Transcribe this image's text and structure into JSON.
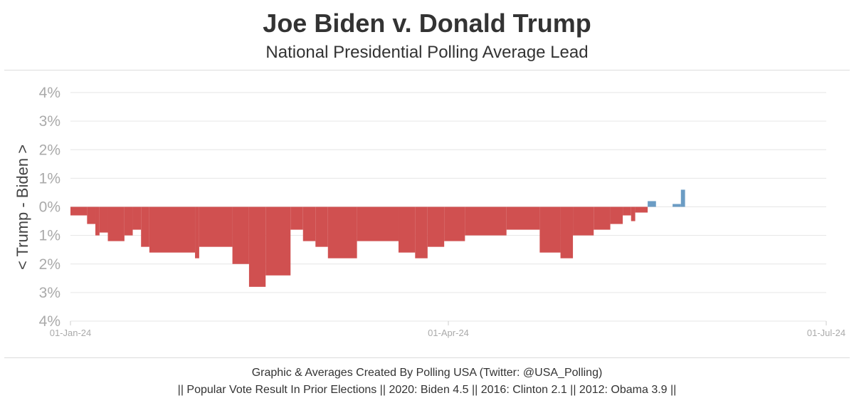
{
  "title": "Joe Biden v. Donald Trump",
  "subtitle": "National Presidential Polling Average Lead",
  "footer": {
    "line1": "Graphic & Averages Created By Polling USA (Twitter: @USA_Polling)",
    "line2": "|| Popular Vote Result In Prior Elections || 2020: Biden 4.5 || 2016: Clinton 2.1 || 2012: Obama 3.9 ||"
  },
  "colors": {
    "biden": "#d05050",
    "trump": "#6b9cc4",
    "grid": "#e6e6e6",
    "tick": "#aaaaaa"
  },
  "chart_data": {
    "type": "bar",
    "ylabel": "< Trump - Biden >",
    "ylim": [
      -4,
      4
    ],
    "y_ticks": [
      {
        "value": 4,
        "label": "4%"
      },
      {
        "value": 3,
        "label": "3%"
      },
      {
        "value": 2,
        "label": "2%"
      },
      {
        "value": 1,
        "label": "1%"
      },
      {
        "value": 0,
        "label": "0%"
      },
      {
        "value": -1,
        "label": "1%"
      },
      {
        "value": -2,
        "label": "2%"
      },
      {
        "value": -3,
        "label": "3%"
      },
      {
        "value": -4,
        "label": "4%"
      }
    ],
    "x_range": [
      "2024-01-01",
      "2024-07-01"
    ],
    "x_ticks": [
      {
        "date": "2024-01-01",
        "label": "01-Jan-24"
      },
      {
        "date": "2024-04-01",
        "label": "01-Apr-24"
      },
      {
        "date": "2024-07-01",
        "label": "01-Jul-24"
      }
    ],
    "grid": true,
    "series": [
      {
        "positive_color": "trump",
        "negative_color": "biden",
        "values": [
          [
            "2024-01-01",
            -0.3
          ],
          [
            "2024-01-05",
            -0.6
          ],
          [
            "2024-01-07",
            -1.0
          ],
          [
            "2024-01-08",
            -0.9
          ],
          [
            "2024-01-10",
            -1.2
          ],
          [
            "2024-01-14",
            -1.0
          ],
          [
            "2024-01-16",
            -0.8
          ],
          [
            "2024-01-18",
            -1.4
          ],
          [
            "2024-01-20",
            -1.6
          ],
          [
            "2024-01-31",
            -1.8
          ],
          [
            "2024-02-01",
            -1.4
          ],
          [
            "2024-02-09",
            -2.0
          ],
          [
            "2024-02-13",
            -2.8
          ],
          [
            "2024-02-17",
            -2.4
          ],
          [
            "2024-02-23",
            -0.8
          ],
          [
            "2024-02-26",
            -1.2
          ],
          [
            "2024-02-29",
            -1.4
          ],
          [
            "2024-03-03",
            -1.8
          ],
          [
            "2024-03-10",
            -1.2
          ],
          [
            "2024-03-20",
            -1.6
          ],
          [
            "2024-03-24",
            -1.8
          ],
          [
            "2024-03-27",
            -1.4
          ],
          [
            "2024-03-31",
            -1.2
          ],
          [
            "2024-04-05",
            -1.0
          ],
          [
            "2024-04-15",
            -0.8
          ],
          [
            "2024-04-23",
            -1.6
          ],
          [
            "2024-04-28",
            -1.8
          ],
          [
            "2024-05-01",
            -1.0
          ],
          [
            "2024-05-06",
            -0.8
          ],
          [
            "2024-05-10",
            -0.6
          ],
          [
            "2024-05-13",
            -0.3
          ],
          [
            "2024-05-15",
            -0.5
          ],
          [
            "2024-05-16",
            -0.2
          ],
          [
            "2024-05-19",
            0.2
          ],
          [
            "2024-05-21",
            0.0
          ],
          [
            "2024-05-25",
            0.1
          ],
          [
            "2024-05-27",
            0.6
          ],
          [
            "2024-05-28",
            0.0
          ]
        ]
      }
    ]
  }
}
